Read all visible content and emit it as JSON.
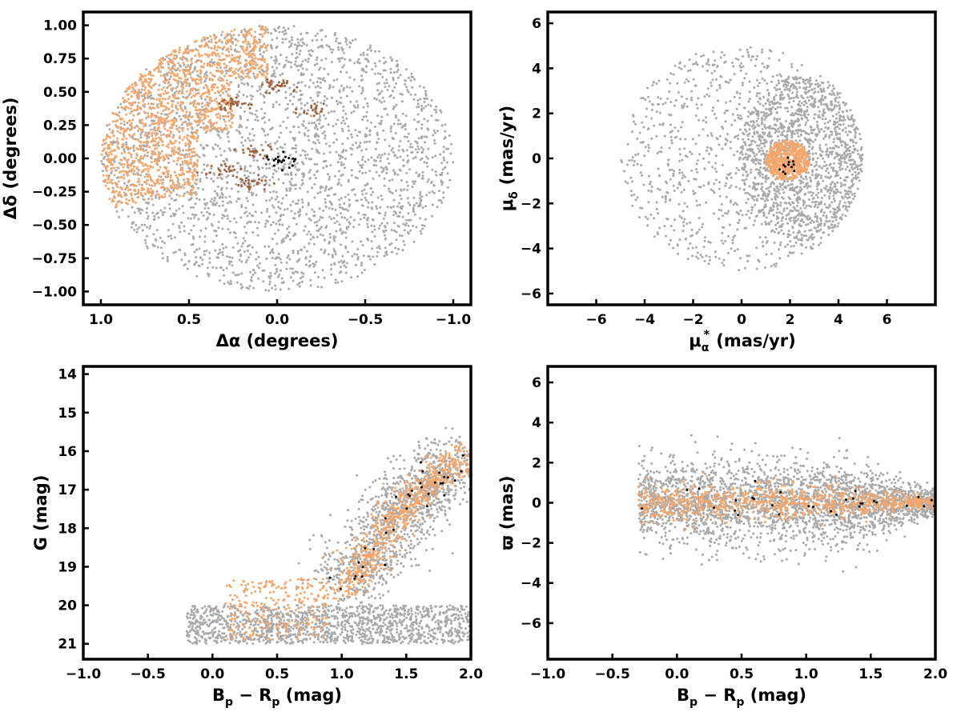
{
  "figure": {
    "background": "#ffffff",
    "colors": {
      "field": "#a9a9a9",
      "members": "#f5a66b",
      "core": "#a0603a",
      "special": "#000000"
    }
  },
  "chart_data": [
    {
      "id": "sky",
      "type": "scatter",
      "title": "",
      "xlabel": "Δα (degrees)",
      "ylabel": "Δδ (degrees)",
      "xlim": [
        1.1,
        -1.1
      ],
      "ylim": [
        -1.1,
        1.1
      ],
      "x_inverted": true,
      "xticks": [
        1.0,
        0.5,
        0.0,
        -0.5,
        -1.0
      ],
      "xtick_labels": [
        "1.0",
        "0.5",
        "0.0",
        "−0.5",
        "−1.0"
      ],
      "yticks": [
        1.0,
        0.75,
        0.5,
        0.25,
        0.0,
        -0.25,
        -0.5,
        -0.75,
        -1.0
      ],
      "ytick_labels": [
        "1.00",
        "0.75",
        "0.50",
        "0.25",
        "0.00",
        "−0.25",
        "−0.50",
        "−0.75",
        "−1.00"
      ],
      "grid": false,
      "legend": "none",
      "series": [
        {
          "color": "#a9a9a9",
          "region": "disk",
          "center": [
            0.0,
            0.0
          ],
          "radius": 1.0,
          "n": 2600
        },
        {
          "color": "#f5a66b",
          "region": "east-upper",
          "x_range": [
            0.05,
            1.0
          ],
          "y_range": [
            -0.35,
            1.0
          ],
          "n": 1400
        },
        {
          "color": "#a0603a",
          "region": "clumps",
          "centers": [
            [
              0.25,
              0.4
            ],
            [
              0.3,
              -0.08
            ],
            [
              0.15,
              -0.18
            ],
            [
              0.12,
              0.05
            ],
            [
              -0.2,
              0.38
            ],
            [
              0.0,
              0.55
            ]
          ],
          "n": 160
        },
        {
          "color": "#000000",
          "region": "center",
          "center": [
            -0.02,
            0.0
          ],
          "spread": 0.05,
          "n": 22
        }
      ]
    },
    {
      "id": "proper-motion",
      "type": "scatter",
      "title": "",
      "xlabel": "μα* (mas/yr)",
      "xlabel_main": "μ",
      "xlabel_sub": "α",
      "xlabel_sup": "*",
      "xlabel_unit": "(mas/yr)",
      "ylabel": "μδ (mas/yr)",
      "ylabel_main": "μ",
      "ylabel_sub": "δ",
      "ylabel_unit": "(mas/yr)",
      "xlim": [
        -8,
        8
      ],
      "ylim": [
        -6.5,
        6.5
      ],
      "xticks": [
        -6,
        -4,
        -2,
        0,
        2,
        4,
        6
      ],
      "xtick_labels": [
        "−6",
        "−4",
        "−2",
        "0",
        "2",
        "4",
        "6"
      ],
      "yticks": [
        6,
        4,
        2,
        0,
        -2,
        -4,
        -6
      ],
      "ytick_labels": [
        "6",
        "4",
        "2",
        "0",
        "−2",
        "−4",
        "−6"
      ],
      "grid": false,
      "legend": "none",
      "series": [
        {
          "color": "#a9a9a9",
          "region": "disk",
          "center": [
            0.0,
            0.0
          ],
          "radius": 5.0,
          "n": 2200,
          "dense_center": [
            2.5,
            0.0
          ]
        },
        {
          "color": "#f5a66b",
          "region": "blob",
          "center": [
            1.9,
            -0.1
          ],
          "radius": 0.9,
          "n": 500
        },
        {
          "color": "#000000",
          "region": "blob",
          "center": [
            1.9,
            -0.3
          ],
          "radius": 0.4,
          "n": 12
        }
      ]
    },
    {
      "id": "cmd",
      "type": "scatter",
      "title": "",
      "xlabel": "Bp − Rp (mag)",
      "xlabel_main": "B",
      "xlabel_sub1": "p",
      "xlabel_mid": " − R",
      "xlabel_sub2": "p",
      "xlabel_unit": " (mag)",
      "ylabel": "G (mag)",
      "xlim": [
        -1.0,
        2.0
      ],
      "ylim": [
        21.4,
        13.8
      ],
      "y_inverted": true,
      "xticks": [
        -1.0,
        -0.5,
        0.0,
        0.5,
        1.0,
        1.5,
        2.0
      ],
      "xtick_labels": [
        "−1.0",
        "−0.5",
        "0.0",
        "0.5",
        "1.0",
        "1.5",
        "2.0"
      ],
      "yticks": [
        21,
        20,
        19,
        18,
        17,
        16,
        15,
        14
      ],
      "ytick_labels": [
        "21",
        "20",
        "19",
        "18",
        "17",
        "16",
        "15",
        "14"
      ],
      "grid": false,
      "legend": "none",
      "sequence": [
        [
          1.0,
          19.6
        ],
        [
          1.2,
          18.8
        ],
        [
          1.4,
          17.8
        ],
        [
          1.55,
          17.2
        ],
        [
          1.75,
          16.6
        ],
        [
          2.0,
          16.1
        ]
      ],
      "series": [
        {
          "color": "#a9a9a9",
          "region": "field",
          "n": 2600
        },
        {
          "color": "#f5a66b",
          "region": "sequence",
          "n": 900
        },
        {
          "color": "#000000",
          "region": "sequence",
          "n": 35
        }
      ]
    },
    {
      "id": "parallax",
      "type": "scatter",
      "title": "",
      "xlabel": "Bp − Rp (mag)",
      "xlabel_main": "B",
      "xlabel_sub1": "p",
      "xlabel_mid": " − R",
      "xlabel_sub2": "p",
      "xlabel_unit": " (mag)",
      "ylabel": "ϖ (mas)",
      "xlim": [
        -1.0,
        2.0
      ],
      "ylim": [
        -7.8,
        6.8
      ],
      "xticks": [
        -1.0,
        -0.5,
        0.0,
        0.5,
        1.0,
        1.5,
        2.0
      ],
      "xtick_labels": [
        "−1.0",
        "−0.5",
        "0.0",
        "0.5",
        "1.0",
        "1.5",
        "2.0"
      ],
      "yticks": [
        6,
        4,
        2,
        0,
        -2,
        -4,
        -6
      ],
      "ytick_labels": [
        "6",
        "4",
        "2",
        "0",
        "−2",
        "−4",
        "−6"
      ],
      "grid": false,
      "legend": "none",
      "series": [
        {
          "color": "#a9a9a9",
          "region": "band",
          "center_y": 0.0,
          "n": 2600
        },
        {
          "color": "#f5a66b",
          "region": "band",
          "center_y": 0.0,
          "n": 800
        },
        {
          "color": "#000000",
          "region": "band",
          "center_y": 0.0,
          "n": 30
        }
      ]
    }
  ]
}
